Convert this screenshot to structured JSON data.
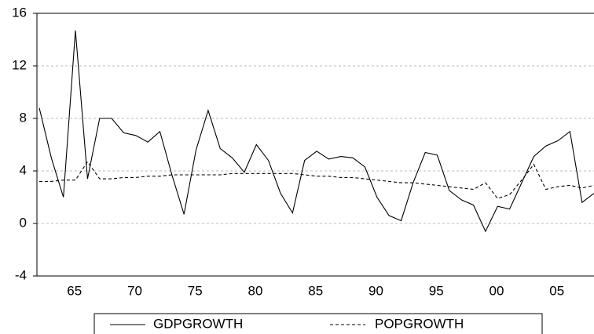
{
  "chart_data": {
    "type": "line",
    "categories": [
      null,
      null,
      "65",
      null,
      null,
      null,
      null,
      "70",
      null,
      null,
      null,
      null,
      "75",
      null,
      null,
      null,
      null,
      "80",
      null,
      null,
      null,
      null,
      "85",
      null,
      null,
      null,
      null,
      "90",
      null,
      null,
      null,
      null,
      "95",
      null,
      null,
      null,
      null,
      "00",
      null,
      null,
      null,
      null,
      "05",
      null,
      null,
      null,
      null
    ],
    "series": [
      {
        "name": "GDPGROWTH",
        "color": "#000000",
        "line_style": "solid",
        "values": [
          8.8,
          5.0,
          2.0,
          14.7,
          3.4,
          8.0,
          8.0,
          6.9,
          6.7,
          6.2,
          7.0,
          3.7,
          0.7,
          5.6,
          8.6,
          5.7,
          5.0,
          3.9,
          6.0,
          4.8,
          2.3,
          0.8,
          4.8,
          5.5,
          4.9,
          5.1,
          5.0,
          4.3,
          2.0,
          0.6,
          0.2,
          3.1,
          5.4,
          5.2,
          2.5,
          1.8,
          1.4,
          -0.6,
          1.3,
          1.1,
          3.1,
          5.1,
          5.9,
          6.3,
          7.0,
          1.6,
          2.3
        ]
      },
      {
        "name": "POPGROWTH",
        "color": "#000000",
        "line_style": "dashed",
        "values": [
          3.2,
          3.2,
          3.3,
          3.3,
          4.7,
          3.4,
          3.4,
          3.5,
          3.5,
          3.6,
          3.6,
          3.7,
          3.7,
          3.7,
          3.7,
          3.7,
          3.8,
          3.8,
          3.8,
          3.8,
          3.8,
          3.8,
          3.7,
          3.6,
          3.6,
          3.5,
          3.5,
          3.4,
          3.3,
          3.2,
          3.1,
          3.1,
          3.0,
          2.9,
          2.8,
          2.7,
          2.6,
          3.1,
          1.9,
          2.2,
          3.3,
          4.5,
          2.6,
          2.8,
          2.9,
          2.7,
          2.9
        ]
      }
    ],
    "ylim": [
      -4,
      16
    ],
    "yticks": [
      -4,
      0,
      4,
      8,
      12,
      16
    ],
    "grid": true,
    "legend": "bottom"
  }
}
